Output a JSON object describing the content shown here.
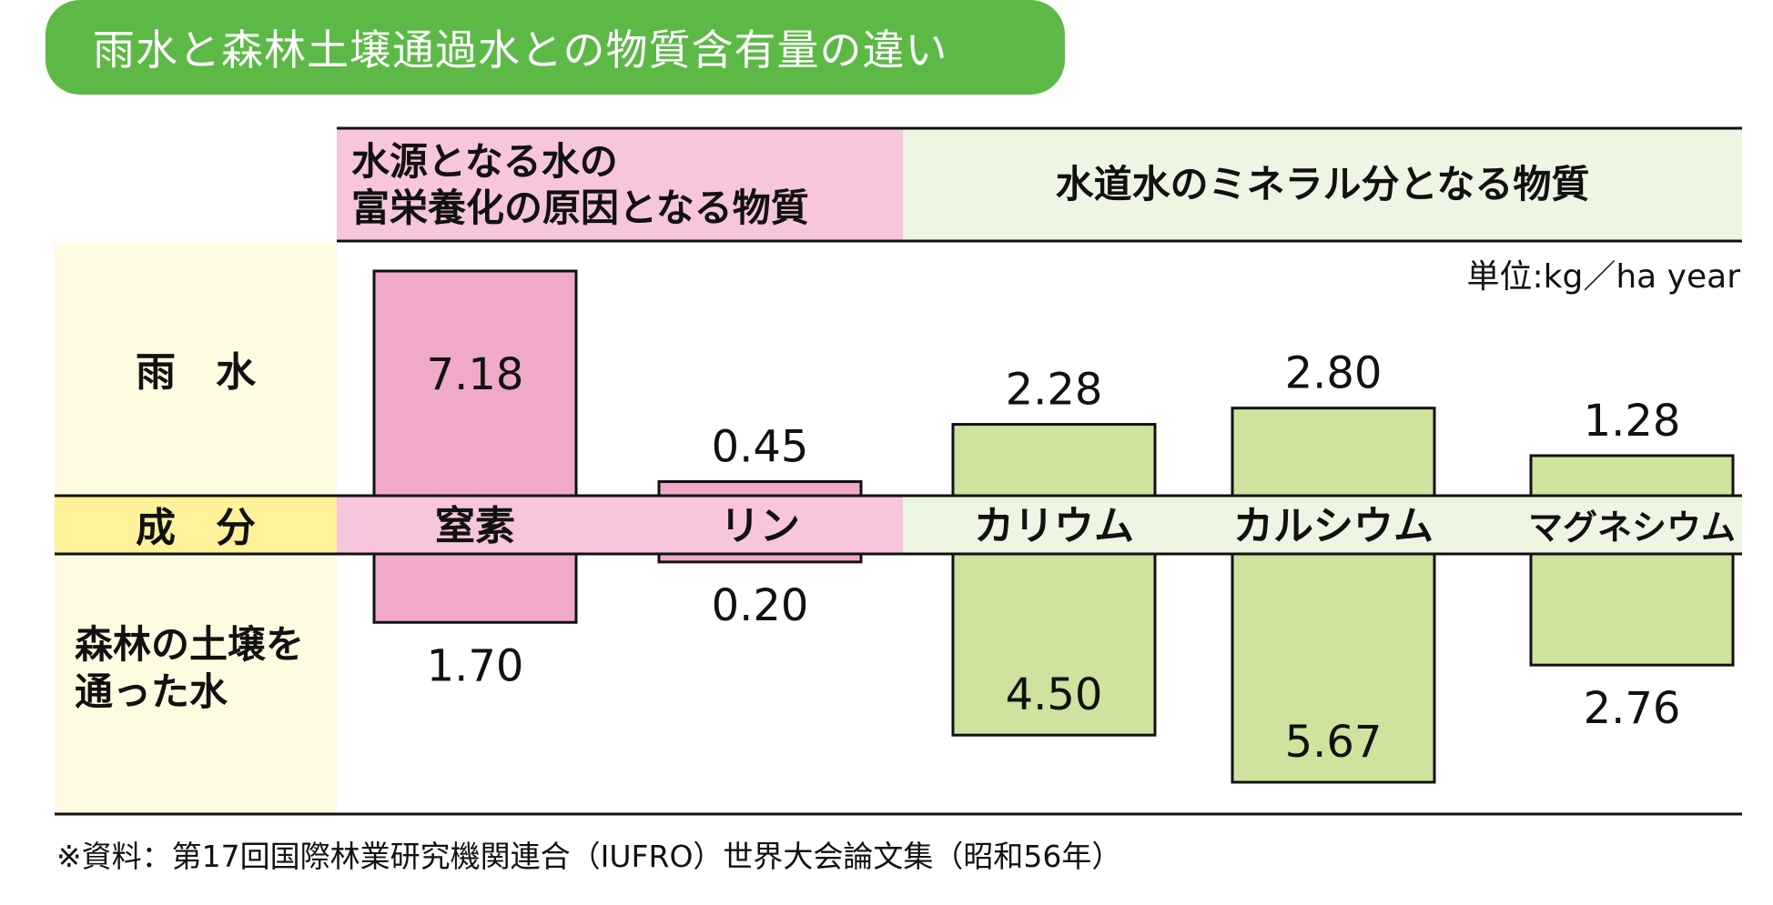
{
  "title": "雨水と森林土壌通過水との物質含有量の違い",
  "category_headers": {
    "eutrophication": "水源となる水の\n富栄養化の原因となる物質",
    "minerals": "水道水のミネラル分となる物質"
  },
  "row_labels": {
    "rain": "雨　水",
    "component": "成　分",
    "forest_soil": "森林の土壌を\n通った水"
  },
  "unit": "単位:kg／ha year",
  "source": "※資料：第17回国際林業研究機関連合（IUFRO）世界大会論文集（昭和56年）",
  "colors": {
    "title_bg": "#5cb946",
    "pink_bar": "#f0a8cb",
    "pink_band": "#f7c6dc",
    "green_bar": "#cde39e",
    "green_band": "#eef5e2",
    "label_bg": "#fffbe0",
    "component_label_bg": "#fff29a"
  },
  "chart_data": {
    "type": "bar",
    "categories": [
      "窒素",
      "リン",
      "カリウム",
      "カルシウム",
      "マグネシウム"
    ],
    "category_groups": [
      "eutrophication",
      "eutrophication",
      "minerals",
      "minerals",
      "minerals"
    ],
    "series": [
      {
        "name": "雨　水",
        "values": [
          7.18,
          0.45,
          2.28,
          2.8,
          1.28
        ]
      },
      {
        "name": "森林の土壌を通った水",
        "values": [
          1.7,
          0.2,
          4.5,
          5.67,
          2.76
        ]
      }
    ],
    "ylabel": "単位:kg／ha year"
  }
}
